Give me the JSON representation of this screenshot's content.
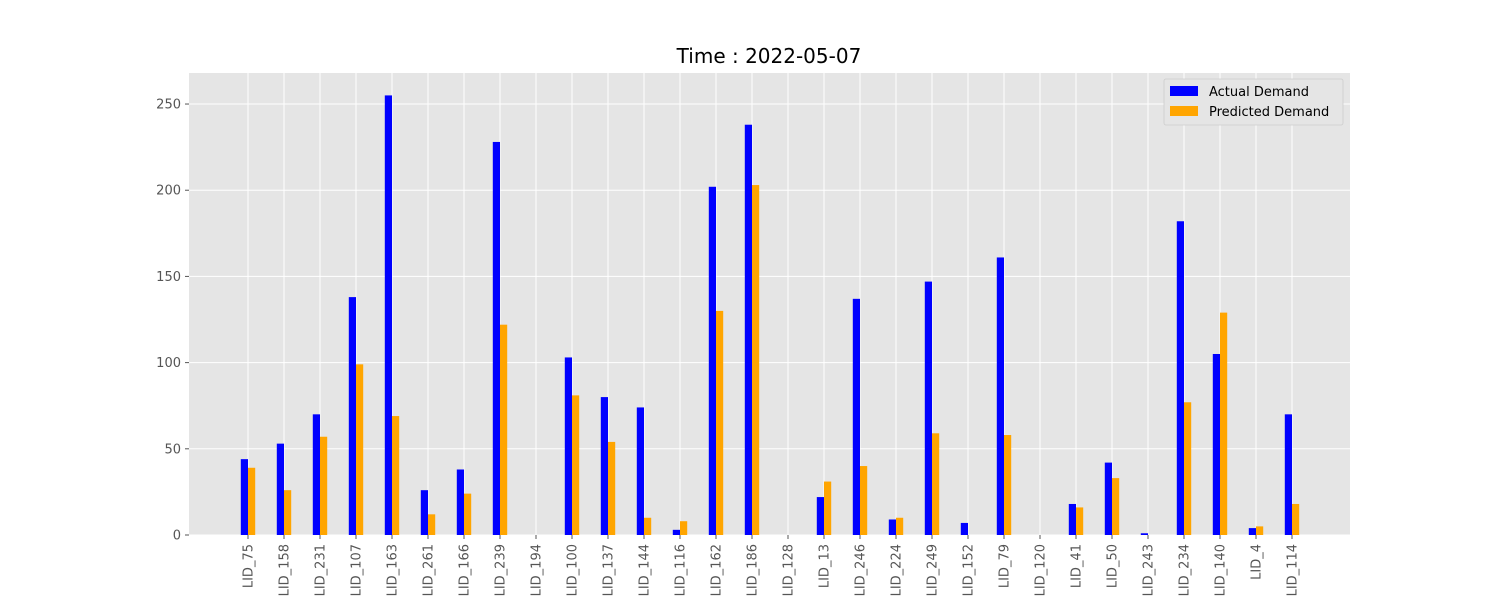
{
  "chart_data": {
    "type": "bar",
    "title": "Time : 2022-05-07",
    "xlabel": "",
    "ylabel": "",
    "ylim": [
      0,
      268
    ],
    "yticks": [
      0,
      50,
      100,
      150,
      200,
      250
    ],
    "grid": true,
    "legend_position": "top-right",
    "categories": [
      "LID_75",
      "LID_158",
      "LID_231",
      "LID_107",
      "LID_163",
      "LID_261",
      "LID_166",
      "LID_239",
      "LID_194",
      "LID_100",
      "LID_137",
      "LID_144",
      "LID_116",
      "LID_162",
      "LID_186",
      "LID_128",
      "LID_13",
      "LID_246",
      "LID_224",
      "LID_249",
      "LID_152",
      "LID_79",
      "LID_120",
      "LID_41",
      "LID_50",
      "LID_243",
      "LID_234",
      "LID_140",
      "LID_4",
      "LID_114"
    ],
    "series": [
      {
        "name": "Actual Demand",
        "color": "#0000ff",
        "values": [
          44,
          53,
          70,
          138,
          255,
          26,
          38,
          228,
          0,
          103,
          80,
          74,
          3,
          202,
          238,
          0,
          22,
          137,
          9,
          147,
          7,
          161,
          0,
          18,
          42,
          1,
          182,
          105,
          4,
          70
        ]
      },
      {
        "name": "Predicted Demand",
        "color": "#ffa500",
        "values": [
          39,
          26,
          57,
          99,
          69,
          12,
          24,
          122,
          0,
          81,
          54,
          10,
          8,
          130,
          203,
          0,
          31,
          40,
          10,
          59,
          0,
          58,
          0,
          16,
          33,
          0,
          77,
          129,
          5,
          18
        ]
      }
    ]
  }
}
